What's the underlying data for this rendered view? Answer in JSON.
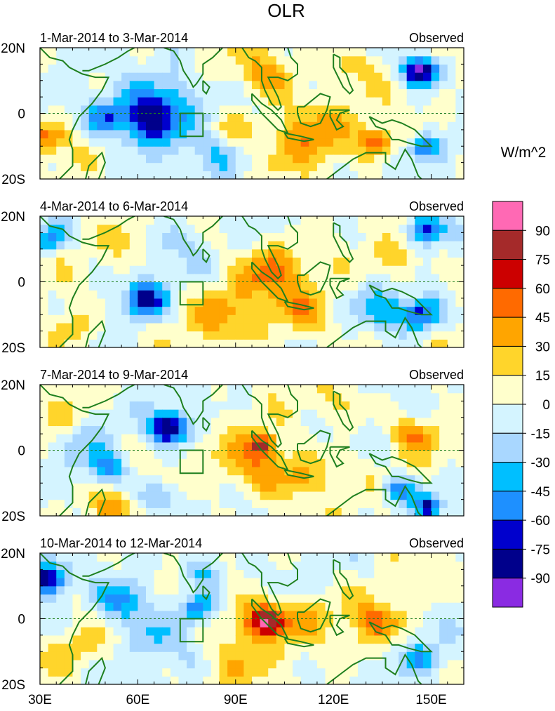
{
  "chart_data": {
    "type": "heatmap",
    "variable": "OLR",
    "title": "OLR",
    "units": "W/m^2",
    "x_range": [
      30,
      160
    ],
    "y_range": [
      -20,
      20
    ],
    "x_ticks": [
      {
        "value": 30,
        "label": "30E"
      },
      {
        "value": 60,
        "label": "60E"
      },
      {
        "value": 90,
        "label": "90E"
      },
      {
        "value": 120,
        "label": "120E"
      },
      {
        "value": 150,
        "label": "150E"
      }
    ],
    "y_ticks": [
      {
        "value": 20,
        "label": "20N"
      },
      {
        "value": 0,
        "label": "0"
      },
      {
        "value": -20,
        "label": "20S"
      }
    ],
    "colorbar": {
      "labels": [
        "90",
        "75",
        "60",
        "45",
        "30",
        "15",
        "0",
        "-15",
        "-30",
        "-45",
        "-60",
        "-75",
        "-90"
      ],
      "colors": [
        "#ff69b4",
        "#a52a2a",
        "#cc0000",
        "#ff6a00",
        "#ffa500",
        "#ffd52b",
        "#ffffcc",
        "#d4f4ff",
        "#a9d7ff",
        "#00bfff",
        "#1e90ff",
        "#0000cd",
        "#00008b",
        "#8a2be2"
      ]
    },
    "region_box": {
      "lon": [
        73,
        80
      ],
      "lat": [
        -7,
        0
      ]
    },
    "panels": [
      {
        "date_label": "1-Mar-2014 to 3-Mar-2014",
        "status": "Observed",
        "anomalies": [
          {
            "lon": 147,
            "lat": 13,
            "value": -105,
            "r": 5.5
          },
          {
            "lon": 63,
            "lat": -2,
            "value": -80,
            "r": 10
          },
          {
            "lon": 50,
            "lat": -1,
            "value": -48,
            "r": 6
          },
          {
            "lon": 148,
            "lat": -10,
            "value": -55,
            "r": 4
          },
          {
            "lon": 70,
            "lat": 5,
            "value": -32,
            "r": 12
          },
          {
            "lon": 84,
            "lat": -14,
            "value": -25,
            "r": 7
          },
          {
            "lon": 100,
            "lat": 12,
            "value": 38,
            "r": 9
          },
          {
            "lon": 112,
            "lat": -6,
            "value": 40,
            "r": 12
          },
          {
            "lon": 133,
            "lat": -8,
            "value": 62,
            "r": 5
          },
          {
            "lon": 32,
            "lat": -7,
            "value": 48,
            "r": 6
          },
          {
            "lon": 125,
            "lat": 14,
            "value": 26,
            "r": 8
          },
          {
            "lon": 90,
            "lat": -4,
            "value": 22,
            "r": 7
          }
        ]
      },
      {
        "date_label": "4-Mar-2014 to 6-Mar-2014",
        "status": "Observed",
        "anomalies": [
          {
            "lon": 148,
            "lat": 16,
            "value": -72,
            "r": 5
          },
          {
            "lon": 147,
            "lat": -10,
            "value": -70,
            "r": 6
          },
          {
            "lon": 62,
            "lat": -5,
            "value": -75,
            "r": 6
          },
          {
            "lon": 33,
            "lat": 13,
            "value": -48,
            "r": 5
          },
          {
            "lon": 135,
            "lat": -8,
            "value": -35,
            "r": 8
          },
          {
            "lon": 70,
            "lat": 12,
            "value": -20,
            "r": 9
          },
          {
            "lon": 100,
            "lat": 3,
            "value": 44,
            "r": 11
          },
          {
            "lon": 112,
            "lat": -10,
            "value": 35,
            "r": 10
          },
          {
            "lon": 85,
            "lat": -10,
            "value": 30,
            "r": 10
          },
          {
            "lon": 140,
            "lat": 6,
            "value": 28,
            "r": 8
          },
          {
            "lon": 40,
            "lat": -14,
            "value": 25,
            "r": 8
          },
          {
            "lon": 57,
            "lat": 12,
            "value": 14,
            "r": 8
          }
        ]
      },
      {
        "date_label": "7-Mar-2014 to 9-Mar-2014",
        "status": "Observed",
        "anomalies": [
          {
            "lon": 70,
            "lat": 7,
            "value": -92,
            "r": 6
          },
          {
            "lon": 149,
            "lat": -17,
            "value": -80,
            "r": 4
          },
          {
            "lon": 140,
            "lat": -12,
            "value": -62,
            "r": 5
          },
          {
            "lon": 50,
            "lat": -5,
            "value": -48,
            "r": 6
          },
          {
            "lon": 66,
            "lat": -14,
            "value": -40,
            "r": 6
          },
          {
            "lon": 42,
            "lat": 5,
            "value": -22,
            "r": 8
          },
          {
            "lon": 98,
            "lat": 2,
            "value": 68,
            "r": 4
          },
          {
            "lon": 97,
            "lat": -5,
            "value": 42,
            "r": 11
          },
          {
            "lon": 112,
            "lat": -8,
            "value": 30,
            "r": 9
          },
          {
            "lon": 145,
            "lat": 5,
            "value": 38,
            "r": 7
          },
          {
            "lon": 52,
            "lat": -17,
            "value": 32,
            "r": 7
          },
          {
            "lon": 36,
            "lat": 9,
            "value": 26,
            "r": 7
          },
          {
            "lon": 122,
            "lat": 13,
            "value": 22,
            "r": 8
          }
        ]
      },
      {
        "date_label": "10-Mar-2014 to 12-Mar-2014",
        "status": "Observed",
        "anomalies": [
          {
            "lon": 32,
            "lat": 12,
            "value": -80,
            "r": 6
          },
          {
            "lon": 56,
            "lat": 6,
            "value": -55,
            "r": 8
          },
          {
            "lon": 78,
            "lat": 3,
            "value": -58,
            "r": 5
          },
          {
            "lon": 148,
            "lat": -12,
            "value": -42,
            "r": 6
          },
          {
            "lon": 80,
            "lat": 15,
            "value": -35,
            "r": 7
          },
          {
            "lon": 65,
            "lat": -5,
            "value": -28,
            "r": 9
          },
          {
            "lon": 100,
            "lat": 0,
            "value": 66,
            "r": 5
          },
          {
            "lon": 96,
            "lat": -2,
            "value": 46,
            "r": 10
          },
          {
            "lon": 133,
            "lat": -1,
            "value": 45,
            "r": 8
          },
          {
            "lon": 112,
            "lat": 1,
            "value": 28,
            "r": 8
          },
          {
            "lon": 88,
            "lat": -15,
            "value": 24,
            "r": 8
          },
          {
            "lon": 40,
            "lat": -8,
            "value": 20,
            "r": 7
          }
        ]
      }
    ]
  },
  "coastlines": {
    "africa": [
      [
        30,
        20
      ],
      [
        33,
        17
      ],
      [
        37,
        16
      ],
      [
        39,
        14
      ],
      [
        43,
        12
      ],
      [
        47,
        11
      ],
      [
        51,
        11
      ],
      [
        49,
        7
      ],
      [
        46,
        3
      ],
      [
        42,
        -1
      ],
      [
        40,
        -5
      ],
      [
        39,
        -8
      ],
      [
        40,
        -11
      ],
      [
        40,
        -16
      ],
      [
        36,
        -20
      ]
    ],
    "arabia": [
      [
        43,
        13
      ],
      [
        45,
        13
      ],
      [
        50,
        15
      ],
      [
        54,
        17
      ],
      [
        57,
        19
      ],
      [
        59,
        20
      ]
    ],
    "india": [
      [
        68,
        20
      ],
      [
        71,
        19
      ],
      [
        73,
        16
      ],
      [
        74,
        13
      ],
      [
        76,
        10
      ],
      [
        77,
        8
      ],
      [
        78,
        9
      ],
      [
        80,
        12
      ],
      [
        80,
        15
      ],
      [
        83,
        17
      ],
      [
        86,
        20
      ]
    ],
    "sri_lanka": [
      [
        80,
        10
      ],
      [
        82,
        8
      ],
      [
        81,
        6
      ],
      [
        80,
        7
      ],
      [
        80,
        10
      ]
    ],
    "indochina": [
      [
        92,
        20
      ],
      [
        94,
        17
      ],
      [
        96,
        16
      ],
      [
        98,
        14
      ],
      [
        98,
        10
      ],
      [
        99,
        7
      ],
      [
        101,
        3
      ],
      [
        103,
        1
      ],
      [
        104,
        2
      ],
      [
        103,
        5
      ],
      [
        102,
        7
      ],
      [
        100,
        11
      ],
      [
        103,
        11
      ],
      [
        106,
        10
      ],
      [
        109,
        12
      ],
      [
        109,
        15
      ],
      [
        107,
        17
      ],
      [
        106,
        20
      ]
    ],
    "sumatra": [
      [
        95,
        6
      ],
      [
        98,
        3
      ],
      [
        101,
        1
      ],
      [
        104,
        -2
      ],
      [
        106,
        -6
      ],
      [
        103,
        -5
      ],
      [
        101,
        -3
      ],
      [
        98,
        0
      ],
      [
        95,
        4
      ],
      [
        95,
        6
      ]
    ],
    "java": [
      [
        105,
        -6
      ],
      [
        110,
        -7
      ],
      [
        114,
        -8
      ],
      [
        111,
        -8.5
      ],
      [
        106,
        -7.5
      ],
      [
        105,
        -6
      ]
    ],
    "borneo": [
      [
        109,
        2
      ],
      [
        111,
        2
      ],
      [
        116,
        6
      ],
      [
        119,
        5
      ],
      [
        118,
        1
      ],
      [
        116,
        -3
      ],
      [
        113,
        -4
      ],
      [
        110,
        -3
      ],
      [
        109,
        0
      ],
      [
        109,
        2
      ]
    ],
    "sulawesi": [
      [
        119,
        1
      ],
      [
        121,
        1
      ],
      [
        125,
        1
      ],
      [
        122,
        0
      ],
      [
        121,
        -2
      ],
      [
        123,
        -4
      ],
      [
        121,
        -5
      ],
      [
        120,
        -3
      ],
      [
        119,
        -1
      ],
      [
        119,
        1
      ]
    ],
    "philippines": [
      [
        120,
        18
      ],
      [
        122,
        17
      ],
      [
        122,
        14
      ],
      [
        124,
        12
      ],
      [
        125,
        9
      ],
      [
        126,
        7
      ],
      [
        125,
        6
      ],
      [
        123,
        8
      ],
      [
        121,
        12
      ],
      [
        120,
        14
      ],
      [
        120,
        18
      ]
    ],
    "new_guinea": [
      [
        131,
        -1
      ],
      [
        135,
        -3
      ],
      [
        138,
        -2
      ],
      [
        141,
        -3
      ],
      [
        145,
        -5
      ],
      [
        148,
        -8
      ],
      [
        150,
        -10
      ],
      [
        147,
        -10
      ],
      [
        143,
        -9
      ],
      [
        140,
        -8
      ],
      [
        138,
        -8
      ],
      [
        136,
        -5
      ],
      [
        133,
        -4
      ],
      [
        131,
        -1
      ]
    ],
    "australia": [
      [
        118,
        -20
      ],
      [
        122,
        -17
      ],
      [
        126,
        -14
      ],
      [
        130,
        -12
      ],
      [
        133,
        -12
      ],
      [
        136,
        -12
      ],
      [
        136,
        -15
      ],
      [
        139,
        -17
      ],
      [
        141,
        -13
      ],
      [
        142,
        -11
      ],
      [
        144,
        -14
      ],
      [
        146,
        -19
      ],
      [
        147,
        -20
      ]
    ],
    "madagascar": [
      [
        44,
        -20
      ],
      [
        45,
        -16
      ],
      [
        47,
        -14
      ],
      [
        49,
        -12
      ],
      [
        50,
        -15
      ],
      [
        48,
        -20
      ]
    ]
  }
}
